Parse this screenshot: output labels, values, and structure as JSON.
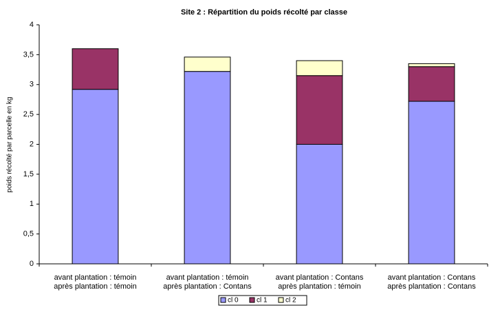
{
  "chart_data": {
    "type": "stacked_bar",
    "title": "Site 2 : Répartition du poids récolté par classe",
    "y_label": "poids récolté par parcelle en kg",
    "categories": [
      [
        "avant plantation : témoin",
        "après plantation : témoin"
      ],
      [
        "avant plantation : témoin",
        "après plantation : Contans"
      ],
      [
        "avant plantation : Contans",
        "après plantation : témoin"
      ],
      [
        "avant plantation : Contans",
        "après plantation : Contans"
      ]
    ],
    "series": [
      {
        "name": "cl 0",
        "color": "#9999ff",
        "values": [
          2.92,
          3.22,
          2.0,
          2.72
        ]
      },
      {
        "name": "cl 1",
        "color": "#993366",
        "values": [
          0.68,
          0,
          1.15,
          0.58
        ]
      },
      {
        "name": "cl 2",
        "color": "#ffffcc",
        "values": [
          0,
          0.24,
          0.25,
          0.05
        ]
      }
    ],
    "ylim": [
      0,
      4
    ],
    "yticks": [
      0,
      {
        "value": 0.5,
        "label": "0,5"
      },
      1,
      {
        "value": 1.5,
        "label": "1,5"
      },
      2,
      {
        "value": 2.5,
        "label": "2,5"
      },
      3,
      {
        "value": 3.5,
        "label": "3,5"
      },
      4
    ],
    "legend": "bottom"
  }
}
